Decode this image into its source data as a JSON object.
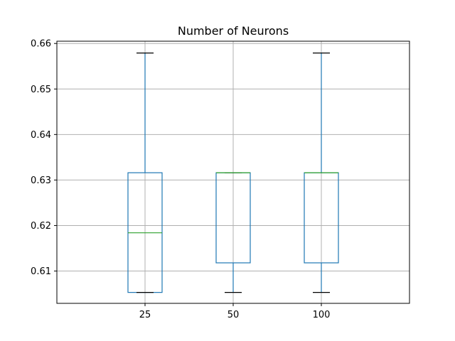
{
  "chart_data": {
    "type": "box",
    "title": "Number of Neurons",
    "xlabel": "",
    "ylabel": "",
    "ylim": [
      0.6029,
      0.6605
    ],
    "yticks": [
      0.61,
      0.62,
      0.63,
      0.64,
      0.65,
      0.66
    ],
    "ytick_labels": [
      "0.61",
      "0.62",
      "0.63",
      "0.64",
      "0.65",
      "0.66"
    ],
    "grid": true,
    "categories": [
      "25",
      "50",
      "100"
    ],
    "boxes": [
      {
        "category": "25",
        "whisker_low": 0.6053,
        "q1": 0.6053,
        "median": 0.6184,
        "q3": 0.6316,
        "whisker_high": 0.6579
      },
      {
        "category": "50",
        "whisker_low": 0.6053,
        "q1": 0.6118,
        "median": 0.6316,
        "q3": 0.6316,
        "whisker_high": 0.6316
      },
      {
        "category": "100",
        "whisker_low": 0.6053,
        "q1": 0.6118,
        "median": 0.6316,
        "q3": 0.6316,
        "whisker_high": 0.6579
      }
    ],
    "colors": {
      "box": "#1f77b4",
      "median": "#2ca02c",
      "cap": "#000000",
      "grid": "#b0b0b0",
      "axes": "#000000"
    }
  }
}
